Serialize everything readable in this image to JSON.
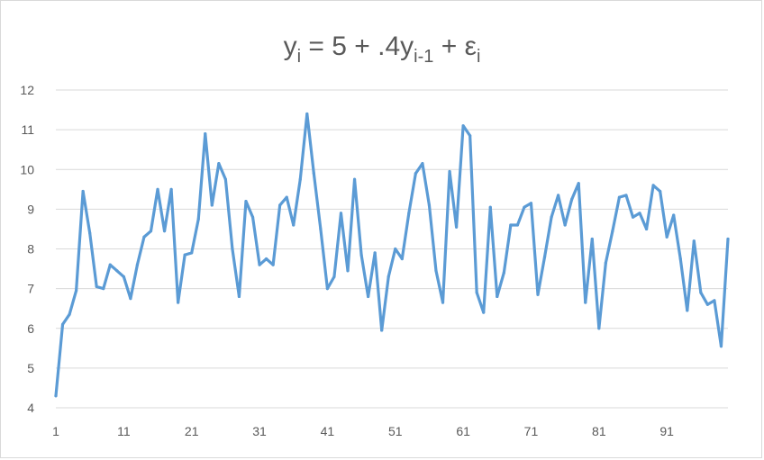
{
  "chart_data": {
    "type": "line",
    "title": {
      "base": "y",
      "base_sub": "i",
      "middle": " = 5 + .4y",
      "middle_sub": "i-1",
      "tail": " + ε",
      "tail_sub": "i"
    },
    "xlabel": "",
    "ylabel": "",
    "x_range": [
      1,
      100
    ],
    "ylim": [
      4,
      12
    ],
    "y_ticks": [
      "4",
      "5",
      "6",
      "7",
      "8",
      "9",
      "10",
      "11",
      "12"
    ],
    "x_ticks": [
      "1",
      "11",
      "21",
      "31",
      "41",
      "51",
      "61",
      "71",
      "81",
      "91"
    ],
    "grid": "horizontal",
    "legend": "none",
    "line_color": "#5b9bd5",
    "series": [
      {
        "values": [
          4.3,
          6.1,
          6.35,
          6.95,
          9.45,
          8.4,
          7.05,
          7.0,
          7.6,
          7.45,
          7.3,
          6.75,
          7.6,
          8.3,
          8.45,
          9.5,
          8.45,
          9.5,
          6.65,
          7.85,
          7.9,
          8.75,
          10.9,
          9.1,
          10.15,
          9.75,
          8.0,
          6.8,
          9.2,
          8.8,
          7.6,
          7.75,
          7.6,
          9.1,
          9.3,
          8.6,
          9.75,
          11.4,
          9.9,
          8.5,
          7.0,
          7.3,
          8.9,
          7.45,
          9.75,
          7.85,
          6.8,
          7.9,
          5.95,
          7.3,
          8.0,
          7.75,
          8.9,
          9.9,
          10.15,
          9.1,
          7.45,
          6.65,
          9.95,
          8.55,
          11.1,
          10.85,
          6.9,
          6.4,
          9.05,
          6.8,
          7.4,
          8.6,
          8.6,
          9.05,
          9.15,
          6.85,
          7.8,
          8.8,
          9.35,
          8.6,
          9.25,
          9.65,
          6.65,
          8.25,
          6.0,
          7.65,
          8.45,
          9.3,
          9.35,
          8.8,
          8.9,
          8.5,
          9.6,
          9.45,
          8.3,
          8.85,
          7.75,
          6.45,
          8.2,
          6.9,
          6.6,
          6.7,
          5.55,
          8.25
        ]
      }
    ]
  }
}
